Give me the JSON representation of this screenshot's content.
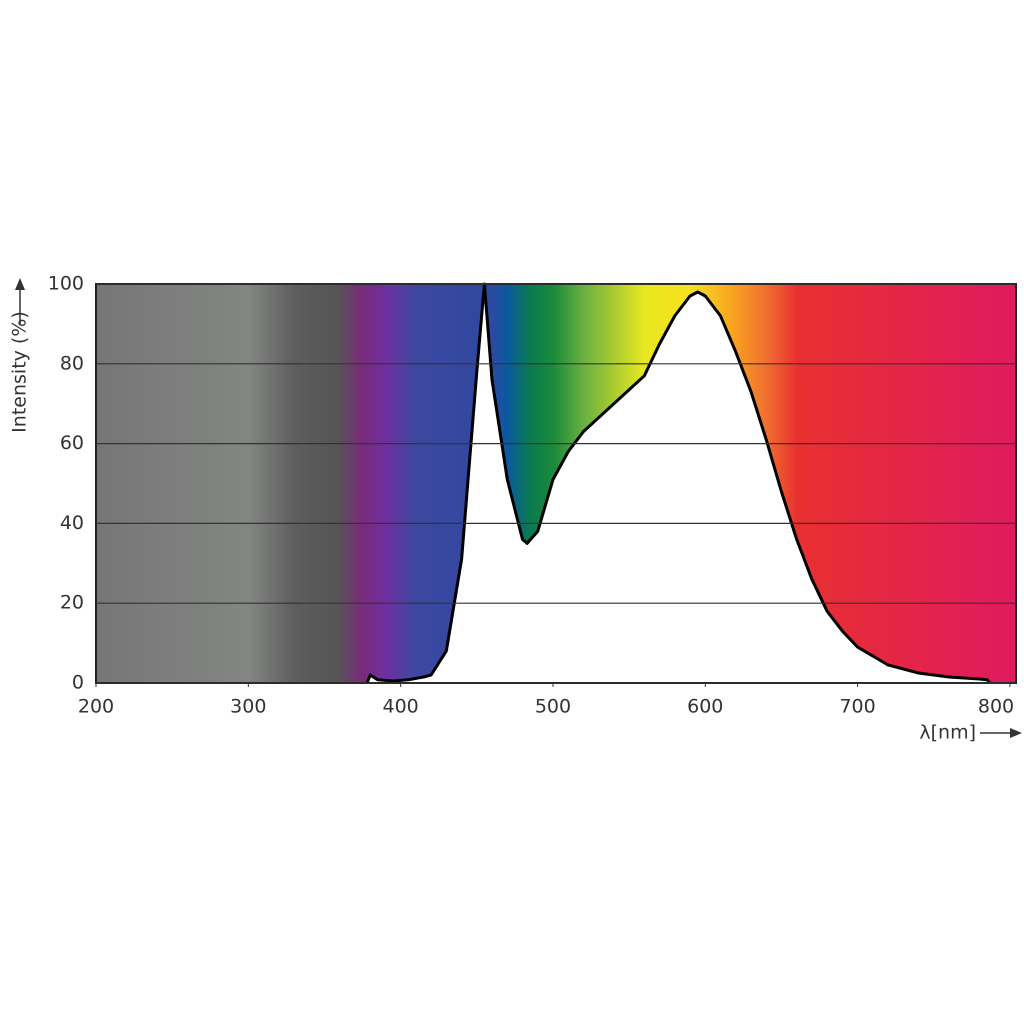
{
  "chart_data": {
    "type": "line",
    "xlabel": "λ[nm]",
    "ylabel": "Intensity (%)",
    "x": [
      378,
      380,
      385,
      395,
      405,
      415,
      420,
      430,
      440,
      450,
      455,
      460,
      470,
      480,
      483,
      490,
      500,
      510,
      520,
      540,
      560,
      570,
      580,
      590,
      595,
      600,
      610,
      620,
      630,
      640,
      650,
      660,
      670,
      680,
      690,
      700,
      720,
      740,
      760,
      780,
      785,
      787
    ],
    "values": [
      0,
      2,
      0.8,
      0.5,
      0.8,
      1.5,
      2,
      8,
      31,
      78,
      100,
      76,
      51,
      36,
      35,
      38,
      51,
      58,
      63,
      70,
      77,
      85,
      92,
      97,
      98,
      97,
      92,
      83,
      73,
      61,
      48,
      36,
      26,
      18,
      13,
      9,
      4.5,
      2.5,
      1.5,
      1,
      0.8,
      0
    ],
    "color": "#000000",
    "fill": "#ffffff",
    "xlim": [
      200,
      804
    ],
    "xticks": [
      200,
      300,
      400,
      500,
      600,
      700,
      800
    ],
    "ylim": [
      0,
      100
    ],
    "yticks": [
      0,
      20,
      40,
      60,
      80,
      100
    ],
    "grid": true
  }
}
